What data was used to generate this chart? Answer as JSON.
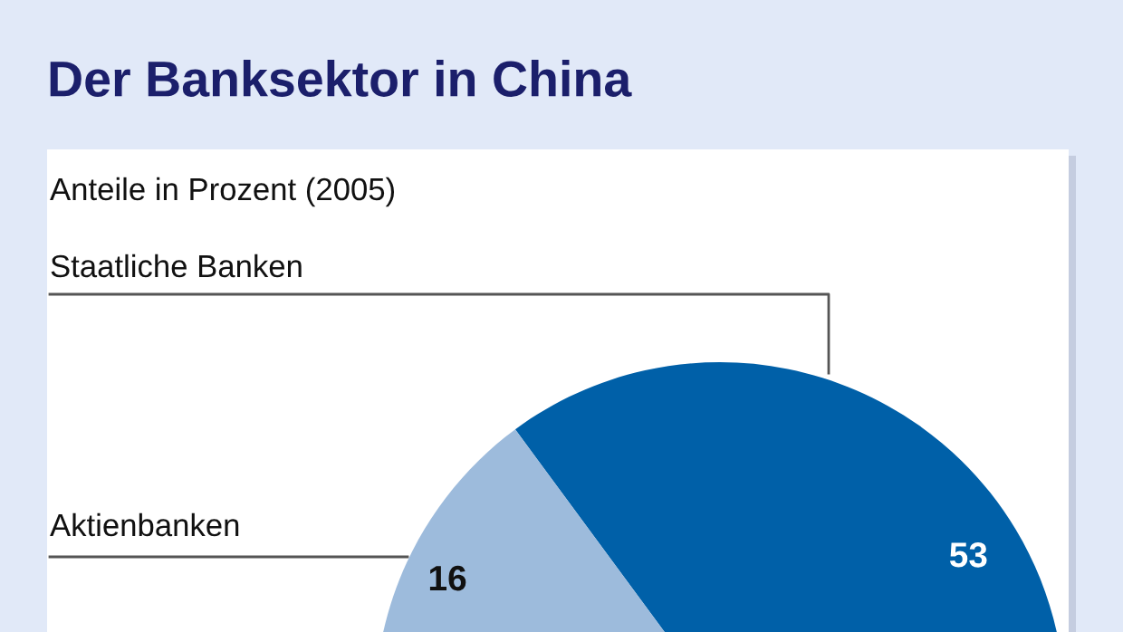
{
  "chart_data": {
    "type": "pie",
    "title": "Der Banksektor in China",
    "subtitle": "Anteile in Prozent (2005)",
    "categories": [
      "Staatliche Banken",
      "Aktienbanken"
    ],
    "values": [
      53,
      16
    ],
    "colors": [
      "#0060a8",
      "#9dbbdc"
    ],
    "data_labels": true
  }
}
